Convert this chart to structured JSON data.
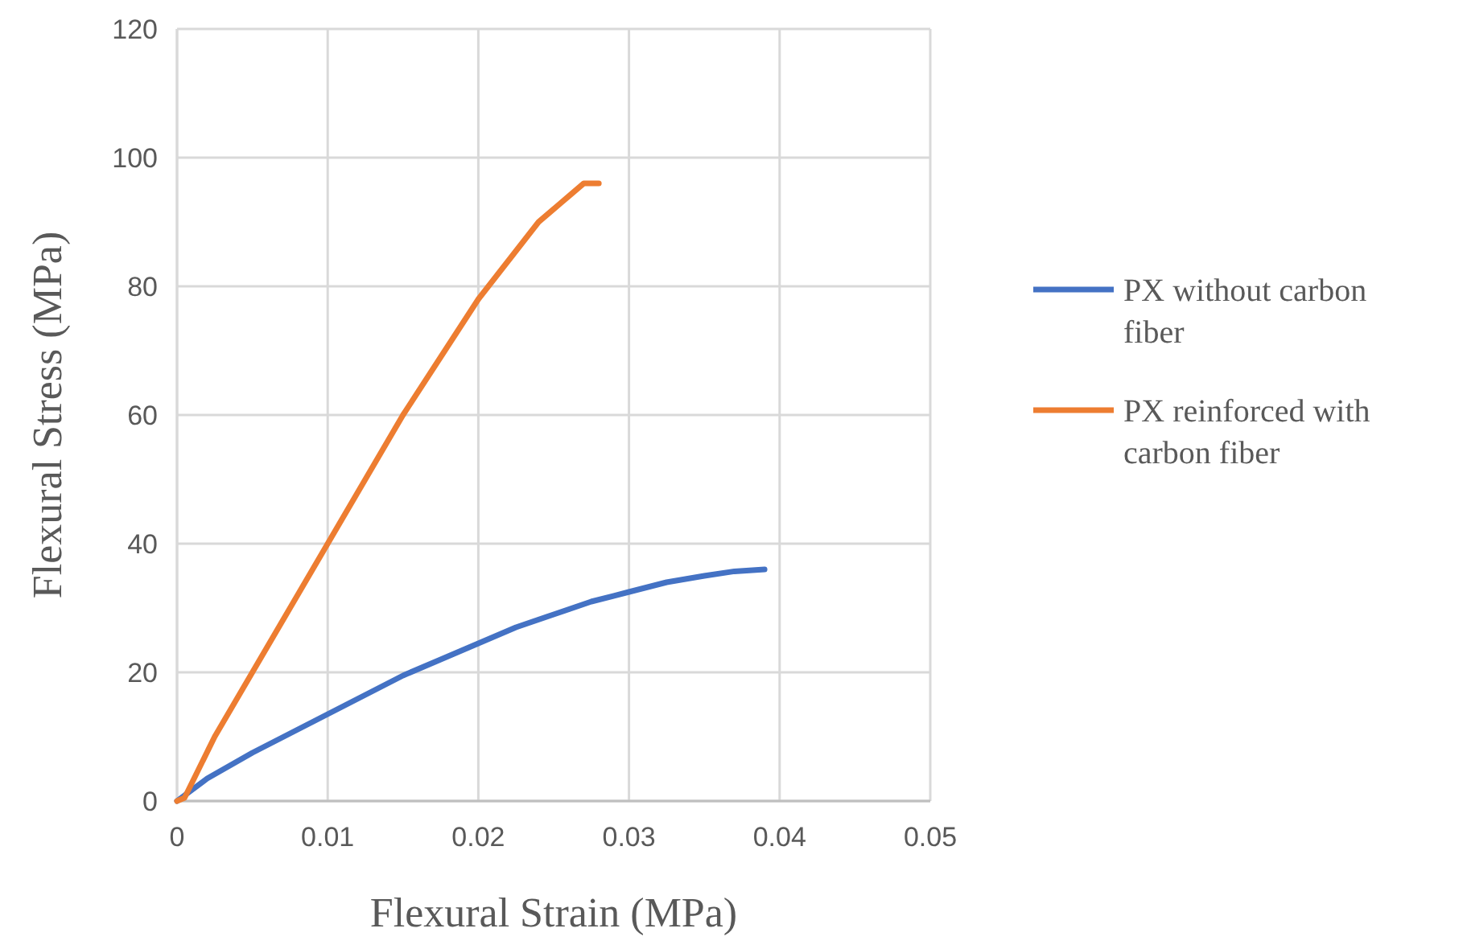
{
  "chart_data": {
    "type": "line",
    "xlabel": "Flexural Strain (MPa)",
    "ylabel": "Flexural Stress (MPa)",
    "xlim": [
      0,
      0.05
    ],
    "xticks": [
      0,
      0.01,
      0.02,
      0.03,
      0.04,
      0.05
    ],
    "ylim": [
      0,
      120
    ],
    "yticks": [
      0,
      20,
      40,
      60,
      80,
      100,
      120
    ],
    "grid": true,
    "legend": "right",
    "marker": "none",
    "line_style": "solid",
    "series": [
      {
        "name": "PX without carbon fiber",
        "color": "#4472c4",
        "x": [
          0,
          0.002,
          0.005,
          0.0075,
          0.01,
          0.0125,
          0.015,
          0.0175,
          0.02,
          0.0225,
          0.025,
          0.0275,
          0.03,
          0.0325,
          0.035,
          0.037,
          0.039
        ],
        "values": [
          0,
          3.5,
          7.5,
          10.5,
          13.5,
          16.5,
          19.5,
          22,
          24.5,
          27,
          29,
          31,
          32.5,
          34,
          35,
          35.7,
          36
        ]
      },
      {
        "name": "PX reinforced with carbon fiber",
        "color": "#ed7d31",
        "x": [
          0,
          0.0005,
          0.0025,
          0.005,
          0.0075,
          0.01,
          0.0125,
          0.015,
          0.0175,
          0.02,
          0.021,
          0.022,
          0.023,
          0.024,
          0.025,
          0.026,
          0.027,
          0.0275,
          0.028
        ],
        "values": [
          0,
          0.5,
          10,
          20,
          30,
          40,
          50,
          60,
          69,
          78,
          81,
          84,
          87,
          90,
          92,
          94,
          96,
          96,
          96
        ]
      }
    ]
  }
}
